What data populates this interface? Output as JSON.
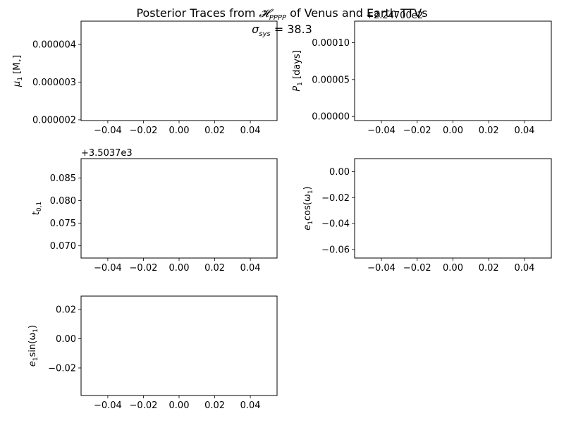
{
  "figure": {
    "title_line1": {
      "pre": "Posterior Traces from ",
      "script_letter": "𝓗",
      "subscript": "PPPP",
      "post": " of Venus and Earth TTVs"
    },
    "title_line2": {
      "symbol": "σ",
      "subscript": "sys",
      "rest": " = 38.3"
    }
  },
  "chart_data": [
    {
      "type": "line",
      "title": "",
      "xlabel": "",
      "ylabel": "μ1 [M⋆]",
      "ylabel_parts": {
        "main": "μ",
        "sub": "1",
        "rest": " [M",
        "sub2": "⋆",
        "close": "]"
      },
      "xlim": [
        -0.055,
        0.055
      ],
      "ylim": [
        1.98e-06,
        4.62e-06
      ],
      "x_ticks": [
        "−0.04",
        "−0.02",
        "0.00",
        "0.02",
        "0.04"
      ],
      "x_tick_values": [
        -0.04,
        -0.02,
        0.0,
        0.02,
        0.04
      ],
      "y_ticks": [
        "0.000002",
        "0.000003",
        "0.000004"
      ],
      "y_tick_values": [
        2e-06,
        3e-06,
        4e-06
      ],
      "offset_text": "",
      "series": []
    },
    {
      "type": "line",
      "title": "",
      "xlabel": "",
      "ylabel": "P1 [days]",
      "ylabel_parts": {
        "main": "P",
        "sub": "1",
        "rest": " [days]"
      },
      "xlim": [
        -0.055,
        0.055
      ],
      "ylim": [
        -5.5e-06,
        0.000129
      ],
      "x_ticks": [
        "−0.04",
        "−0.02",
        "0.00",
        "0.02",
        "0.04"
      ],
      "x_tick_values": [
        -0.04,
        -0.02,
        0.0,
        0.02,
        0.04
      ],
      "y_ticks": [
        "0.00000",
        "0.00005",
        "0.00010"
      ],
      "y_tick_values": [
        0.0,
        5e-05,
        0.0001
      ],
      "offset_text": "+2.24700e2",
      "series": []
    },
    {
      "type": "line",
      "title": "",
      "xlabel": "",
      "ylabel": "t0,1",
      "ylabel_parts": {
        "main": "t",
        "sub": "0,1"
      },
      "xlim": [
        -0.055,
        0.055
      ],
      "ylim": [
        0.0673,
        0.0893
      ],
      "x_ticks": [
        "−0.04",
        "−0.02",
        "0.00",
        "0.02",
        "0.04"
      ],
      "x_tick_values": [
        -0.04,
        -0.02,
        0.0,
        0.02,
        0.04
      ],
      "y_ticks": [
        "0.070",
        "0.075",
        "0.080",
        "0.085"
      ],
      "y_tick_values": [
        0.07,
        0.075,
        0.08,
        0.085
      ],
      "offset_text": "+3.5037e3",
      "series": []
    },
    {
      "type": "line",
      "title": "",
      "xlabel": "",
      "ylabel": "e1cos(ω1)",
      "ylabel_parts": {
        "main": "e",
        "sub": "1",
        "rest": "cos(ω",
        "sub2": "1",
        "close": ")"
      },
      "xlim": [
        -0.055,
        0.055
      ],
      "ylim": [
        -0.0666,
        0.0101
      ],
      "x_ticks": [
        "−0.04",
        "−0.02",
        "0.00",
        "0.02",
        "0.04"
      ],
      "x_tick_values": [
        -0.04,
        -0.02,
        0.0,
        0.02,
        0.04
      ],
      "y_ticks": [
        "−0.06",
        "−0.04",
        "−0.02",
        "0.00"
      ],
      "y_tick_values": [
        -0.06,
        -0.04,
        -0.02,
        0.0
      ],
      "offset_text": "",
      "series": []
    },
    {
      "type": "line",
      "title": "",
      "xlabel": "",
      "ylabel": "e1sin(ω1)",
      "ylabel_parts": {
        "main": "e",
        "sub": "1",
        "rest": "sin(ω",
        "sub2": "1",
        "close": ")"
      },
      "xlim": [
        -0.055,
        0.055
      ],
      "ylim": [
        -0.0388,
        0.0291
      ],
      "x_ticks": [
        "−0.04",
        "−0.02",
        "0.00",
        "0.02",
        "0.04"
      ],
      "x_tick_values": [
        -0.04,
        -0.02,
        0.0,
        0.02,
        0.04
      ],
      "y_ticks": [
        "−0.02",
        "0.00",
        "0.02"
      ],
      "y_tick_values": [
        -0.02,
        0.0,
        0.02
      ],
      "offset_text": "",
      "series": []
    }
  ]
}
